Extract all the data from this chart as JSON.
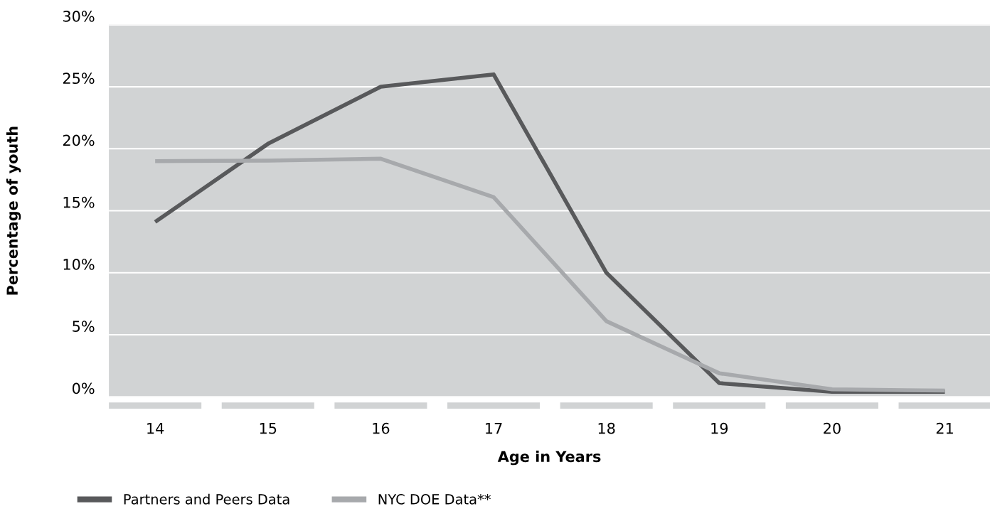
{
  "chart_data": {
    "type": "line",
    "xlabel": "Age in Years",
    "ylabel": "Percentage of youth",
    "categories": [
      "14",
      "15",
      "16",
      "17",
      "18",
      "19",
      "20",
      "21"
    ],
    "series": [
      {
        "name": "Partners and Peers Data",
        "color": "#58595b",
        "values": [
          14.1,
          20.4,
          25.0,
          26.0,
          10.0,
          1.1,
          0.4,
          0.4
        ]
      },
      {
        "name": "NYC DOE Data**",
        "color": "#a7a9ac",
        "values": [
          19.0,
          19.05,
          19.2,
          16.1,
          6.1,
          1.9,
          0.6,
          0.5
        ]
      }
    ],
    "ylim": [
      0,
      30
    ],
    "yticks": [
      {
        "value": 0,
        "label": "0%"
      },
      {
        "value": 5,
        "label": "5%"
      },
      {
        "value": 10,
        "label": "10%"
      },
      {
        "value": 15,
        "label": "15%"
      },
      {
        "value": 20,
        "label": "20%"
      },
      {
        "value": 25,
        "label": "25%"
      },
      {
        "value": 30,
        "label": "30%"
      }
    ],
    "grid": "y",
    "legend": "bottom left",
    "marker": "none",
    "line_style": "solid"
  }
}
